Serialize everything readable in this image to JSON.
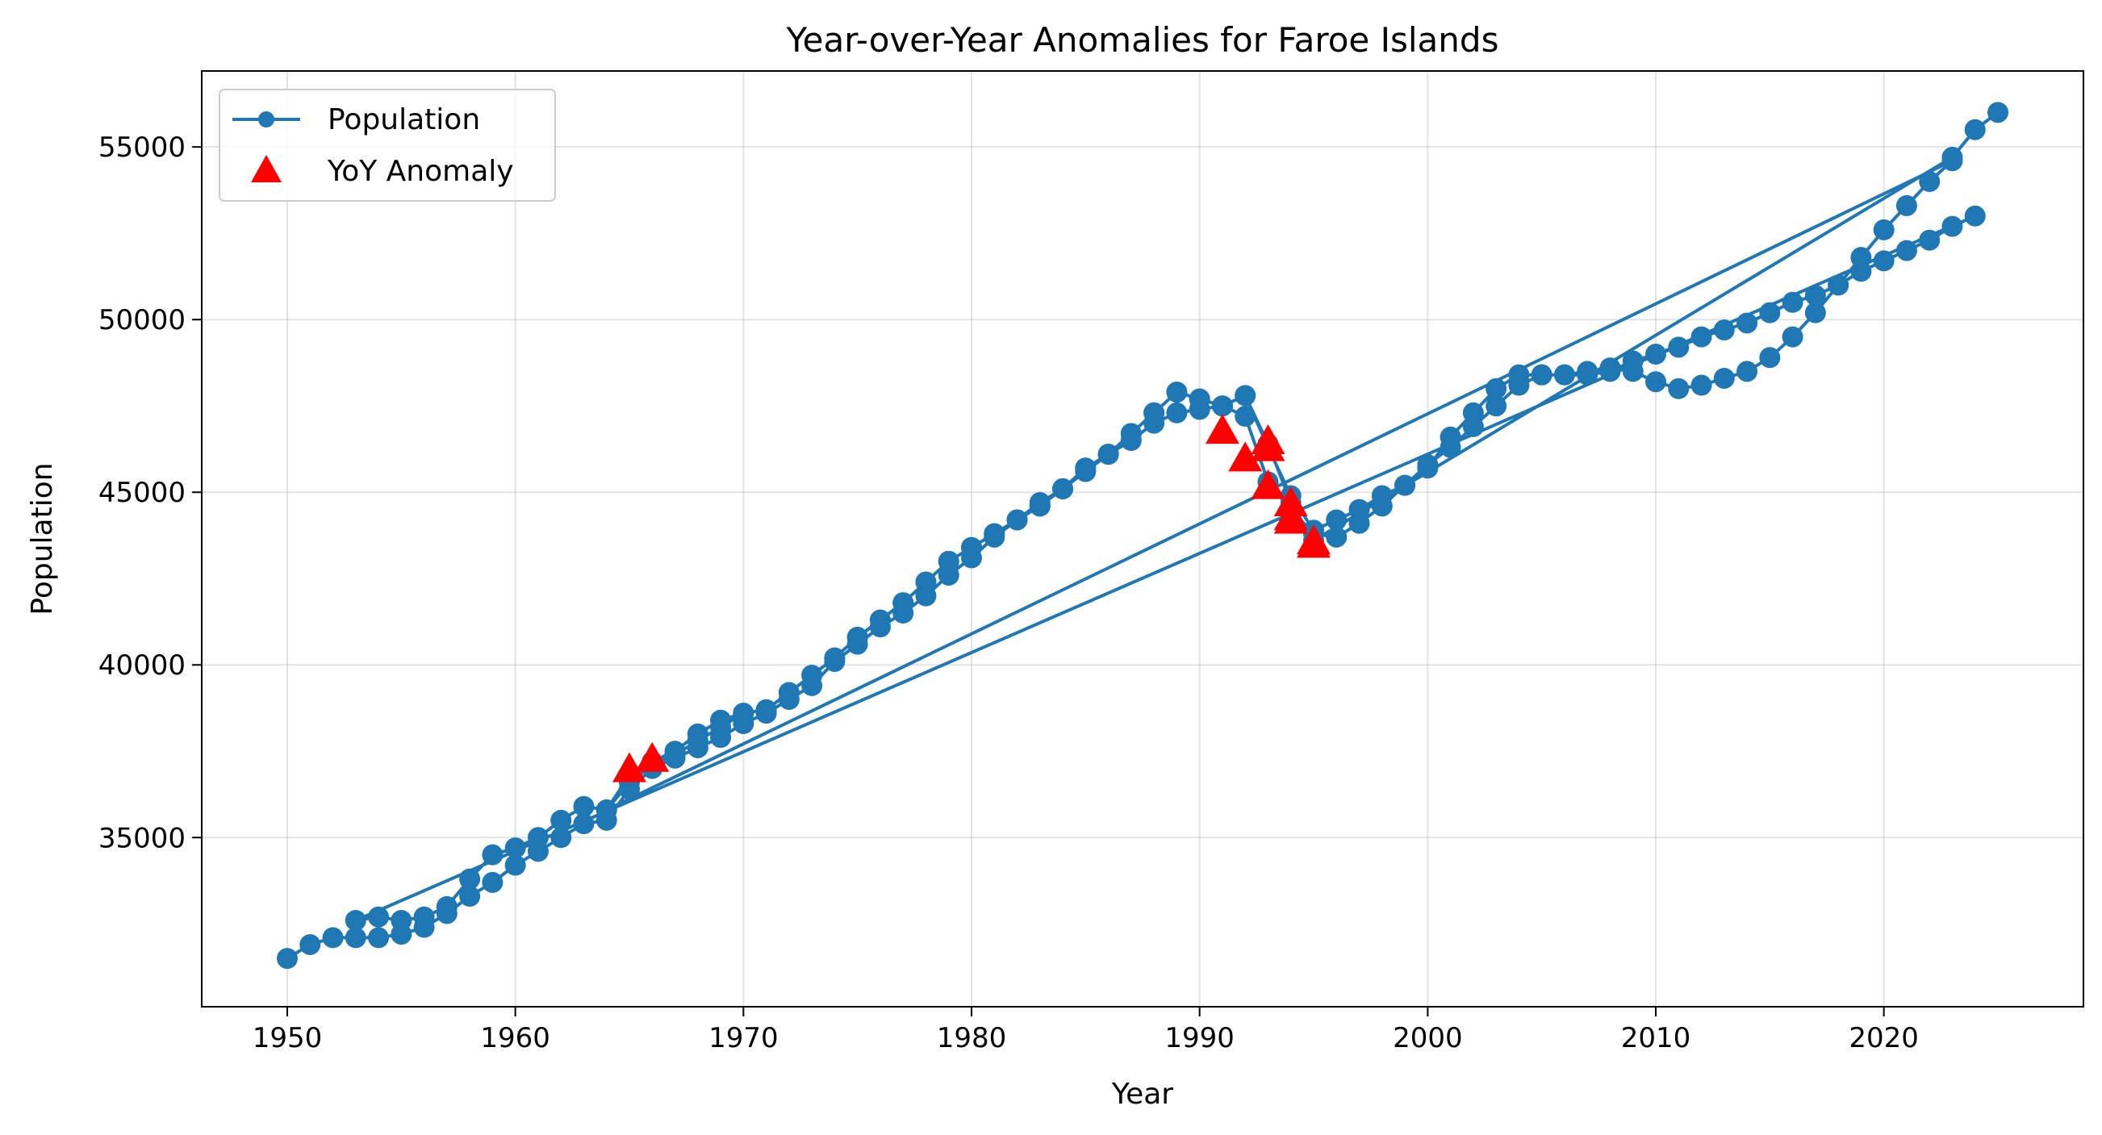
{
  "chart_data": {
    "type": "line",
    "title": "Year-over-Year Anomalies for Faroe Islands",
    "xlabel": "Year",
    "ylabel": "Population",
    "xlim": [
      1946.25,
      2028.75
    ],
    "ylim": [
      30100,
      57200
    ],
    "xticks": [
      1950,
      1960,
      1970,
      1980,
      1990,
      2000,
      2010,
      2020
    ],
    "yticks": [
      35000,
      40000,
      45000,
      50000,
      55000
    ],
    "grid": true,
    "legend_position": "top-left",
    "colors": {
      "line": "#1f77b4",
      "anomaly": "#ff0000"
    },
    "series": [
      {
        "name": "Population",
        "marker": "circle",
        "points": [
          [
            1950,
            31500
          ],
          [
            1951,
            31900
          ],
          [
            1952,
            32100
          ],
          [
            1953,
            32100
          ],
          [
            1954,
            32100
          ],
          [
            1955,
            32200
          ],
          [
            1956,
            32400
          ],
          [
            1957,
            32800
          ],
          [
            1958,
            33300
          ],
          [
            1959,
            33700
          ],
          [
            1960,
            34200
          ],
          [
            1961,
            34600
          ],
          [
            1962,
            35000
          ],
          [
            1963,
            35400
          ],
          [
            1964,
            35500
          ],
          [
            1965,
            36400
          ],
          [
            1966,
            37000
          ],
          [
            1967,
            37300
          ],
          [
            1968,
            37600
          ],
          [
            1969,
            37900
          ],
          [
            1970,
            38300
          ],
          [
            1971,
            38600
          ],
          [
            1972,
            39000
          ],
          [
            1973,
            39400
          ],
          [
            1974,
            40100
          ],
          [
            1975,
            40600
          ],
          [
            1976,
            41100
          ],
          [
            1977,
            41500
          ],
          [
            1978,
            42000
          ],
          [
            1979,
            42600
          ],
          [
            1980,
            43100
          ],
          [
            1981,
            43700
          ],
          [
            1982,
            44200
          ],
          [
            1983,
            44700
          ],
          [
            1984,
            45100
          ],
          [
            1985,
            45600
          ],
          [
            1986,
            46100
          ],
          [
            1987,
            46500
          ],
          [
            1988,
            47000
          ],
          [
            1989,
            47300
          ],
          [
            1990,
            47400
          ],
          [
            1991,
            47500
          ],
          [
            1992,
            47200
          ],
          [
            1993,
            45300
          ],
          [
            1994,
            44500
          ],
          [
            1995,
            43800
          ],
          [
            1996,
            43700
          ],
          [
            1997,
            44100
          ],
          [
            1998,
            44600
          ],
          [
            1999,
            45200
          ],
          [
            2000,
            45800
          ],
          [
            2001,
            46300
          ],
          [
            2002,
            46900
          ],
          [
            2003,
            47500
          ],
          [
            2004,
            48100
          ],
          [
            2005,
            48400
          ],
          [
            2006,
            48400
          ],
          [
            2007,
            48500
          ],
          [
            2008,
            48600
          ],
          [
            2009,
            48500
          ],
          [
            2010,
            48200
          ],
          [
            2011,
            48000
          ],
          [
            2012,
            48100
          ],
          [
            2013,
            48300
          ],
          [
            2014,
            48500
          ],
          [
            2015,
            48900
          ],
          [
            2016,
            49500
          ],
          [
            2017,
            50200
          ],
          [
            2018,
            51000
          ],
          [
            2019,
            51400
          ],
          [
            2020,
            51700
          ],
          [
            2021,
            52000
          ],
          [
            2022,
            52300
          ],
          [
            2023,
            52700
          ],
          [
            2024,
            53000
          ],
          [
            1953,
            32600
          ],
          [
            1954,
            32700
          ],
          [
            1955,
            32600
          ],
          [
            1956,
            32700
          ],
          [
            1957,
            33000
          ],
          [
            1958,
            33800
          ],
          [
            1959,
            34500
          ],
          [
            1960,
            34700
          ],
          [
            1961,
            35000
          ],
          [
            1962,
            35500
          ],
          [
            1963,
            35900
          ],
          [
            1964,
            35800
          ],
          [
            1965,
            36800
          ],
          [
            1966,
            37200
          ],
          [
            1967,
            37500
          ],
          [
            1968,
            38000
          ],
          [
            1969,
            38400
          ],
          [
            1970,
            38600
          ],
          [
            1971,
            38700
          ],
          [
            1972,
            39200
          ],
          [
            1973,
            39700
          ],
          [
            1974,
            40200
          ],
          [
            1975,
            40800
          ],
          [
            1976,
            41300
          ],
          [
            1977,
            41800
          ],
          [
            1978,
            42400
          ],
          [
            1979,
            43000
          ],
          [
            1980,
            43400
          ],
          [
            1981,
            43800
          ],
          [
            1982,
            44200
          ],
          [
            1983,
            44600
          ],
          [
            1984,
            45100
          ],
          [
            1985,
            45700
          ],
          [
            1986,
            46100
          ],
          [
            1987,
            46700
          ],
          [
            1988,
            47300
          ],
          [
            1989,
            47900
          ],
          [
            1990,
            47700
          ],
          [
            1991,
            47500
          ],
          [
            1992,
            47800
          ],
          [
            1993,
            46300
          ],
          [
            1994,
            44900
          ],
          [
            1995,
            43900
          ],
          [
            1996,
            44200
          ],
          [
            1997,
            44500
          ],
          [
            1998,
            44900
          ],
          [
            1999,
            45200
          ],
          [
            2000,
            45700
          ],
          [
            2001,
            46600
          ],
          [
            2002,
            47300
          ],
          [
            2003,
            48000
          ],
          [
            2004,
            48400
          ],
          [
            2005,
            48400
          ],
          [
            2006,
            48400
          ],
          [
            2007,
            48400
          ],
          [
            2008,
            48500
          ],
          [
            2009,
            48800
          ],
          [
            2010,
            49000
          ],
          [
            2011,
            49200
          ],
          [
            2012,
            49500
          ],
          [
            2013,
            49700
          ],
          [
            2014,
            49900
          ],
          [
            2015,
            50200
          ],
          [
            2016,
            50500
          ],
          [
            2017,
            50700
          ],
          [
            2018,
            51000
          ],
          [
            2019,
            51800
          ],
          [
            2020,
            52600
          ],
          [
            2021,
            53300
          ],
          [
            2022,
            54000
          ],
          [
            2023,
            54600
          ],
          [
            1964,
            35800
          ],
          [
            1965,
            36600
          ],
          [
            1966,
            37100
          ],
          [
            1967,
            37400
          ],
          [
            1968,
            37800
          ],
          [
            1969,
            38200
          ],
          [
            1970,
            38600
          ],
          [
            1971,
            38700
          ],
          [
            1972,
            39200
          ],
          [
            1973,
            39700
          ],
          [
            1974,
            40200
          ],
          [
            1975,
            40800
          ],
          [
            1976,
            41300
          ],
          [
            1977,
            41800
          ],
          [
            1978,
            42400
          ],
          [
            1979,
            43000
          ],
          [
            1980,
            43400
          ],
          [
            1981,
            43800
          ],
          [
            1982,
            44200
          ],
          [
            1983,
            44600
          ],
          [
            1984,
            45100
          ],
          [
            1985,
            45700
          ],
          [
            1986,
            46100
          ],
          [
            1987,
            46700
          ],
          [
            1988,
            47300
          ],
          [
            1989,
            47900
          ],
          [
            1990,
            47700
          ],
          [
            1991,
            47500
          ],
          [
            1992,
            47800
          ],
          [
            1993,
            46400
          ],
          [
            1994,
            44700
          ],
          [
            1995,
            43600
          ],
          [
            2023,
            54700
          ],
          [
            2024,
            55500
          ],
          [
            2025,
            56000
          ]
        ]
      },
      {
        "name": "YoY Anomaly",
        "marker": "triangle",
        "points": [
          [
            1965,
            37000
          ],
          [
            1966,
            37300
          ],
          [
            1991,
            46800
          ],
          [
            1992,
            46000
          ],
          [
            1993,
            46300
          ],
          [
            1993,
            46500
          ],
          [
            1993,
            45200
          ],
          [
            1994,
            44700
          ],
          [
            1994,
            44300
          ],
          [
            1994,
            44200
          ],
          [
            1995,
            43600
          ],
          [
            1995,
            43500
          ]
        ]
      }
    ]
  }
}
